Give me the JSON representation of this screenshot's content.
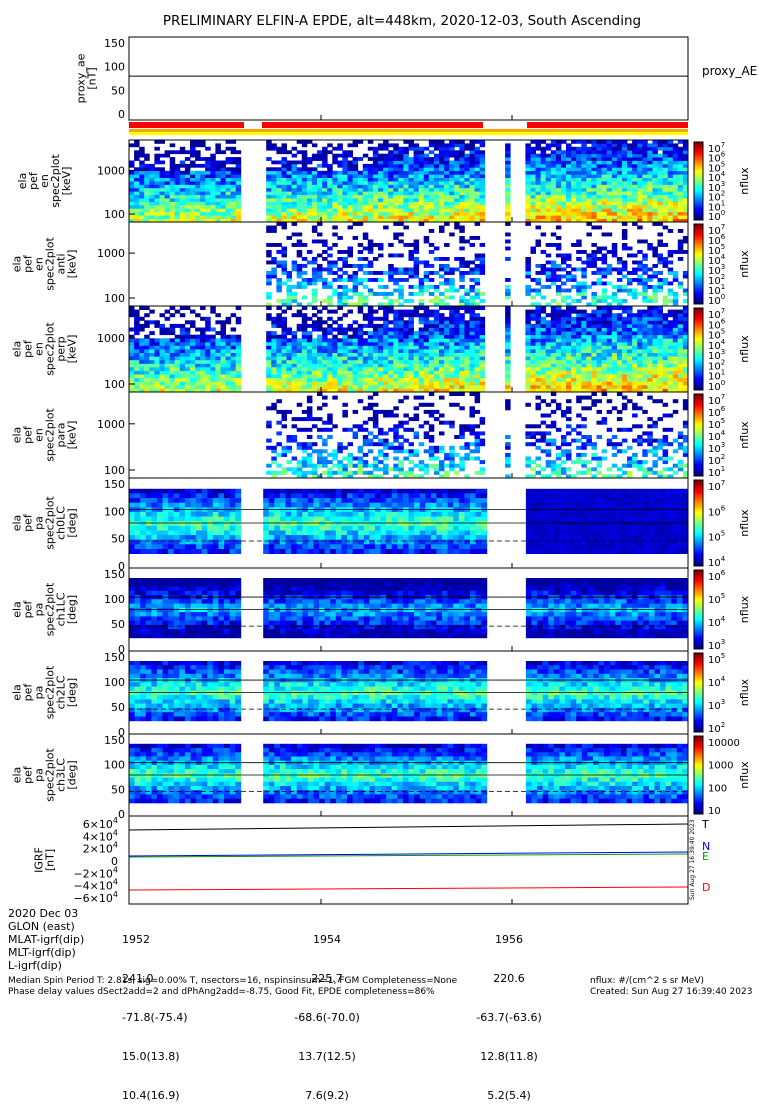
{
  "title": "PRELIMINARY ELFIN-A EPDE, alt=448km, 2020-12-03, South Ascending",
  "chart_data": {
    "type": "heatmap",
    "title": "PRELIMINARY ELFIN-A EPDE, alt=448km, 2020-12-03, South Ascending",
    "panels": [
      {
        "kind": "line",
        "ylabel": [
          "proxy_ae",
          "[nT]"
        ],
        "yticks": [
          "150",
          "100",
          "50",
          "0"
        ],
        "ylim": [
          0,
          150
        ],
        "legend": [
          "proxy_AE"
        ],
        "series": [
          {
            "name": "proxy_AE",
            "values": [
              80,
              80
            ]
          }
        ]
      },
      {
        "kind": "spec",
        "ylabel": [
          "ela",
          "pef",
          "en",
          "spec2plot",
          "[keV]"
        ],
        "yticks": [
          "1000",
          "100"
        ],
        "cbar": [
          "10",
          "10",
          "10",
          "10",
          "10",
          "10",
          "10",
          "10"
        ],
        "cbar_exp": [
          "7",
          "6",
          "5",
          "4",
          "3",
          "2",
          "1",
          "0"
        ],
        "cbar_label": "nflux"
      },
      {
        "kind": "spec",
        "ylabel": [
          "ela",
          "pef",
          "en",
          "spec2plot",
          "anti",
          "[keV]"
        ],
        "yticks": [
          "1000",
          "100"
        ],
        "cbar": [
          "10",
          "10",
          "10",
          "10",
          "10",
          "10",
          "10",
          "10"
        ],
        "cbar_exp": [
          "7",
          "6",
          "5",
          "4",
          "3",
          "2",
          "1",
          "0"
        ],
        "cbar_label": "nflux"
      },
      {
        "kind": "spec",
        "ylabel": [
          "ela",
          "pef",
          "en",
          "spec2plot",
          "perp",
          "[keV]"
        ],
        "yticks": [
          "1000",
          "100"
        ],
        "cbar": [
          "10",
          "10",
          "10",
          "10",
          "10",
          "10",
          "10",
          "10"
        ],
        "cbar_exp": [
          "7",
          "6",
          "5",
          "4",
          "3",
          "2",
          "1",
          "0"
        ],
        "cbar_label": "nflux"
      },
      {
        "kind": "spec",
        "ylabel": [
          "ela",
          "pef",
          "en",
          "spec2plot",
          "para",
          "[keV]"
        ],
        "yticks": [
          "1000",
          "100"
        ],
        "cbar": [
          "10",
          "10",
          "10",
          "10",
          "10",
          "10",
          "10"
        ],
        "cbar_exp": [
          "7",
          "6",
          "5",
          "4",
          "3",
          "2",
          "1"
        ],
        "cbar_label": "nflux"
      },
      {
        "kind": "pa",
        "ylabel": [
          "ela",
          "pef",
          "pa",
          "spec2plot",
          "ch0LC",
          "[deg]"
        ],
        "yticks": [
          "150",
          "100",
          "50",
          "0"
        ],
        "cbar": [
          "10",
          "10",
          "10",
          "10"
        ],
        "cbar_exp": [
          "7",
          "6",
          "5",
          "4"
        ],
        "cbar_label": "nflux"
      },
      {
        "kind": "pa",
        "ylabel": [
          "ela",
          "pef",
          "pa",
          "spec2plot",
          "ch1LC",
          "[deg]"
        ],
        "yticks": [
          "150",
          "100",
          "50",
          "0"
        ],
        "cbar": [
          "10",
          "10",
          "10",
          "10"
        ],
        "cbar_exp": [
          "6",
          "5",
          "4",
          "3"
        ],
        "cbar_label": "nflux"
      },
      {
        "kind": "pa",
        "ylabel": [
          "ela",
          "pef",
          "pa",
          "spec2plot",
          "ch2LC",
          "[deg]"
        ],
        "yticks": [
          "150",
          "100",
          "50",
          "0"
        ],
        "cbar": [
          "10",
          "10",
          "10",
          "10"
        ],
        "cbar_exp": [
          "5",
          "4",
          "3",
          "2"
        ],
        "cbar_label": "nflux"
      },
      {
        "kind": "pa",
        "ylabel": [
          "ela",
          "pef",
          "pa",
          "spec2plot",
          "ch3LC",
          "[deg]"
        ],
        "yticks": [
          "150",
          "100",
          "50",
          "0"
        ],
        "cbar": [
          "10000",
          "1000",
          "100",
          "10"
        ],
        "cbar_exp": [
          "",
          "",
          "",
          ""
        ],
        "cbar_label": "nflux"
      },
      {
        "kind": "igrf",
        "ylabel": [
          "IGRF",
          "[nT]"
        ],
        "yticks": [
          "6×10",
          "4×10",
          "2×10",
          "0",
          "−2×10",
          "−4×10",
          "−6×10"
        ],
        "yticks_exp": [
          "4",
          "4",
          "4",
          "",
          "4",
          "4",
          "4"
        ],
        "legend": [
          "T",
          "N",
          "E",
          "D"
        ],
        "legend_colors": [
          "#000000",
          "#0000ff",
          "#00a000",
          "#ff0000"
        ],
        "stamp": "Sun Aug 27 16:39:40 2023"
      }
    ],
    "xticks": [
      "1952",
      "1954",
      "1956"
    ],
    "colors": {
      "sci_zone": "#ff0000",
      "bar_orange": "#ffa500",
      "bar_yellow": "#ffff00"
    }
  },
  "footer": {
    "rows": [
      {
        "label": "2020 Dec 03",
        "c1": "1952",
        "c2": "1954",
        "c3": "1956"
      },
      {
        "label": "GLON (east)",
        "c1": "241.0",
        "c2": "225.7",
        "c3": "220.6"
      },
      {
        "label": "MLAT-igrf(dip)",
        "c1": "-71.8(-75.4)",
        "c2": "-68.6(-70.0)",
        "c3": "-63.7(-63.6)"
      },
      {
        "label": "MLT-igrf(dip)",
        "c1": "15.0(13.8)",
        "c2": "13.7(12.5)",
        "c3": "12.8(11.8)"
      },
      {
        "label": "L-igrf(dip)",
        "c1": "10.4(16.9)",
        "c2": "7.6(9.2)",
        "c3": "5.2(5.4)"
      }
    ],
    "note1": "Median Spin Period T: 2.81s, sig=0.00% T, nsectors=16, nspinsinsum=1, FGM Completeness=None",
    "note2": "Phase delay values dSect2add=2 and dPhAng2add=-8.75, Good Fit, EPDE completeness=86%",
    "units": "nflux: #/(cm^2 s sr MeV)",
    "created": "Created: Sun Aug 27 16:39:40 2023"
  }
}
